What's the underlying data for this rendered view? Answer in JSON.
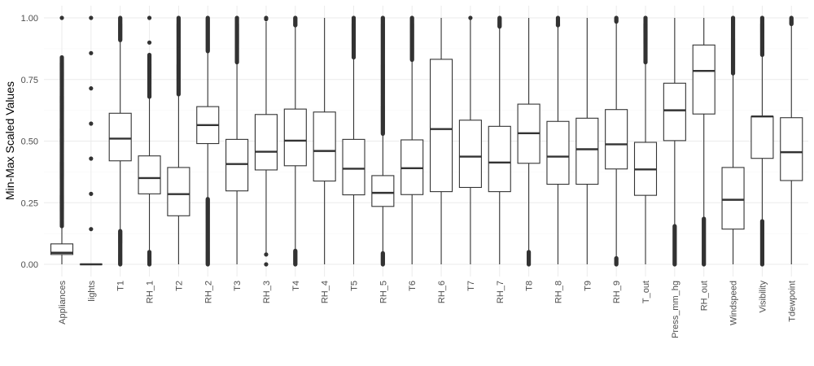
{
  "chart_data": {
    "type": "boxplot",
    "ylabel": "Min-Max Scaled Values",
    "xlabel": "",
    "ylim": [
      -0.05,
      1.05
    ],
    "y_ticks": [
      "0.00",
      "0.25",
      "0.50",
      "0.75",
      "1.00"
    ],
    "y_tick_values": [
      0,
      0.25,
      0.5,
      0.75,
      1.0
    ],
    "grid": true,
    "legend": "none",
    "colors": {
      "grid_major": "#ebebeb",
      "grid_minor": "#f5f5f5",
      "box_stroke": "#333333",
      "box_fill": "#ffffff",
      "outlier": "#333333",
      "tick_text": "#4d4d4d"
    },
    "series": [
      {
        "name": "Appliances",
        "wlo": 0.0,
        "q1": 0.04,
        "med": 0.047,
        "q3": 0.083,
        "whi": 0.155,
        "outliers_hi": [
          0.155,
          0.84
        ],
        "dense_hi": true,
        "outliers_lo": [],
        "dense_lo": false,
        "extra": [
          1.0
        ]
      },
      {
        "name": "lights",
        "wlo": 0.0,
        "q1": 0.0,
        "med": 0.0,
        "q3": 0.0,
        "whi": 0.0,
        "outliers_hi": [],
        "dense_hi": false,
        "outliers_lo": [],
        "dense_lo": false,
        "extra": [
          0.143,
          0.286,
          0.429,
          0.571,
          0.714,
          0.857,
          1.0
        ]
      },
      {
        "name": "T1",
        "wlo": 0.135,
        "q1": 0.42,
        "med": 0.51,
        "q3": 0.613,
        "whi": 0.91,
        "outliers_hi": [
          0.91,
          1.0
        ],
        "dense_hi": true,
        "outliers_lo": [
          0.0,
          0.135
        ],
        "dense_lo": true,
        "extra": []
      },
      {
        "name": "RH_1",
        "wlo": 0.05,
        "q1": 0.286,
        "med": 0.35,
        "q3": 0.44,
        "whi": 0.68,
        "outliers_hi": [
          0.68,
          0.85
        ],
        "dense_hi": true,
        "outliers_lo": [
          0.0,
          0.05
        ],
        "dense_lo": true,
        "extra": [
          0.9,
          1.0
        ]
      },
      {
        "name": "T2",
        "wlo": 0.0,
        "q1": 0.197,
        "med": 0.285,
        "q3": 0.393,
        "whi": 0.69,
        "outliers_hi": [
          0.69,
          1.0
        ],
        "dense_hi": true,
        "outliers_lo": [],
        "dense_lo": false,
        "extra": []
      },
      {
        "name": "RH_2",
        "wlo": 0.265,
        "q1": 0.49,
        "med": 0.565,
        "q3": 0.64,
        "whi": 0.865,
        "outliers_hi": [
          0.865,
          1.0
        ],
        "dense_hi": true,
        "outliers_lo": [
          0.0,
          0.265
        ],
        "dense_lo": true,
        "extra": []
      },
      {
        "name": "T3",
        "wlo": 0.0,
        "q1": 0.298,
        "med": 0.407,
        "q3": 0.507,
        "whi": 0.82,
        "outliers_hi": [
          0.82,
          1.0
        ],
        "dense_hi": true,
        "outliers_lo": [],
        "dense_lo": false,
        "extra": []
      },
      {
        "name": "RH_3",
        "wlo": 0.04,
        "q1": 0.383,
        "med": 0.457,
        "q3": 0.608,
        "whi": 0.985,
        "outliers_hi": [],
        "dense_hi": false,
        "outliers_lo": [
          0.0,
          0.04
        ],
        "dense_lo": false,
        "extra": [
          0.995,
          1.0
        ]
      },
      {
        "name": "T4",
        "wlo": 0.055,
        "q1": 0.4,
        "med": 0.502,
        "q3": 0.63,
        "whi": 0.97,
        "outliers_hi": [
          0.97,
          1.0
        ],
        "dense_hi": true,
        "outliers_lo": [
          0.0,
          0.055
        ],
        "dense_lo": true,
        "extra": []
      },
      {
        "name": "RH_4",
        "wlo": 0.0,
        "q1": 0.338,
        "med": 0.46,
        "q3": 0.618,
        "whi": 1.0,
        "outliers_hi": [],
        "dense_hi": false,
        "outliers_lo": [],
        "dense_lo": false,
        "extra": []
      },
      {
        "name": "T5",
        "wlo": 0.0,
        "q1": 0.282,
        "med": 0.388,
        "q3": 0.507,
        "whi": 0.84,
        "outliers_hi": [
          0.84,
          1.0
        ],
        "dense_hi": true,
        "outliers_lo": [],
        "dense_lo": false,
        "extra": []
      },
      {
        "name": "RH_5",
        "wlo": 0.045,
        "q1": 0.235,
        "med": 0.29,
        "q3": 0.36,
        "whi": 0.53,
        "outliers_hi": [
          0.53,
          1.0
        ],
        "dense_hi": true,
        "outliers_lo": [
          0.0,
          0.045
        ],
        "dense_lo": true,
        "extra": []
      },
      {
        "name": "T6",
        "wlo": 0.0,
        "q1": 0.283,
        "med": 0.39,
        "q3": 0.505,
        "whi": 0.83,
        "outliers_hi": [
          0.83,
          1.0
        ],
        "dense_hi": true,
        "outliers_lo": [],
        "dense_lo": false,
        "extra": []
      },
      {
        "name": "RH_6",
        "wlo": 0.0,
        "q1": 0.295,
        "med": 0.549,
        "q3": 0.832,
        "whi": 1.0,
        "outliers_hi": [],
        "dense_hi": false,
        "outliers_lo": [],
        "dense_lo": false,
        "extra": []
      },
      {
        "name": "T7",
        "wlo": 0.0,
        "q1": 0.312,
        "med": 0.437,
        "q3": 0.585,
        "whi": 0.995,
        "outliers_hi": [],
        "dense_hi": false,
        "outliers_lo": [],
        "dense_lo": false,
        "extra": [
          1.0
        ]
      },
      {
        "name": "RH_7",
        "wlo": 0.0,
        "q1": 0.295,
        "med": 0.413,
        "q3": 0.56,
        "whi": 0.965,
        "outliers_hi": [
          0.965,
          1.0
        ],
        "dense_hi": true,
        "outliers_lo": [],
        "dense_lo": false,
        "extra": []
      },
      {
        "name": "T8",
        "wlo": 0.05,
        "q1": 0.41,
        "med": 0.532,
        "q3": 0.65,
        "whi": 1.0,
        "outliers_hi": [],
        "dense_hi": false,
        "outliers_lo": [
          0.0,
          0.05
        ],
        "dense_lo": true,
        "extra": []
      },
      {
        "name": "RH_8",
        "wlo": 0.0,
        "q1": 0.325,
        "med": 0.437,
        "q3": 0.58,
        "whi": 0.97,
        "outliers_hi": [
          0.97,
          1.0
        ],
        "dense_hi": true,
        "outliers_lo": [],
        "dense_lo": false,
        "extra": []
      },
      {
        "name": "T9",
        "wlo": 0.0,
        "q1": 0.325,
        "med": 0.467,
        "q3": 0.593,
        "whi": 1.0,
        "outliers_hi": [],
        "dense_hi": false,
        "outliers_lo": [],
        "dense_lo": false,
        "extra": []
      },
      {
        "name": "RH_9",
        "wlo": 0.025,
        "q1": 0.387,
        "med": 0.487,
        "q3": 0.628,
        "whi": 0.985,
        "outliers_hi": [
          0.985,
          1.0
        ],
        "dense_hi": true,
        "outliers_lo": [
          0.0,
          0.025
        ],
        "dense_lo": true,
        "extra": []
      },
      {
        "name": "T_out",
        "wlo": 0.0,
        "q1": 0.28,
        "med": 0.385,
        "q3": 0.495,
        "whi": 0.82,
        "outliers_hi": [
          0.82,
          1.0
        ],
        "dense_hi": true,
        "outliers_lo": [],
        "dense_lo": false,
        "extra": []
      },
      {
        "name": "Press_mm_hg",
        "wlo": 0.155,
        "q1": 0.502,
        "med": 0.625,
        "q3": 0.735,
        "whi": 1.0,
        "outliers_hi": [],
        "dense_hi": false,
        "outliers_lo": [
          0.0,
          0.155
        ],
        "dense_lo": true,
        "extra": []
      },
      {
        "name": "RH_out",
        "wlo": 0.185,
        "q1": 0.61,
        "med": 0.785,
        "q3": 0.89,
        "whi": 1.0,
        "outliers_hi": [],
        "dense_hi": false,
        "outliers_lo": [
          0.0,
          0.185
        ],
        "dense_lo": true,
        "extra": []
      },
      {
        "name": "Windspeed",
        "wlo": 0.0,
        "q1": 0.143,
        "med": 0.262,
        "q3": 0.393,
        "whi": 0.775,
        "outliers_hi": [
          0.775,
          1.0
        ],
        "dense_hi": true,
        "outliers_lo": [],
        "dense_lo": false,
        "extra": []
      },
      {
        "name": "Visibility",
        "wlo": 0.175,
        "q1": 0.43,
        "med": 0.6,
        "q3": 0.6,
        "whi": 0.85,
        "outliers_hi": [
          0.85,
          1.0
        ],
        "dense_hi": true,
        "outliers_lo": [
          0.0,
          0.175
        ],
        "dense_lo": true,
        "extra": []
      },
      {
        "name": "Tdewpoint",
        "wlo": 0.0,
        "q1": 0.34,
        "med": 0.455,
        "q3": 0.595,
        "whi": 0.975,
        "outliers_hi": [
          0.975,
          1.0
        ],
        "dense_hi": true,
        "outliers_lo": [],
        "dense_lo": false,
        "extra": []
      }
    ]
  }
}
